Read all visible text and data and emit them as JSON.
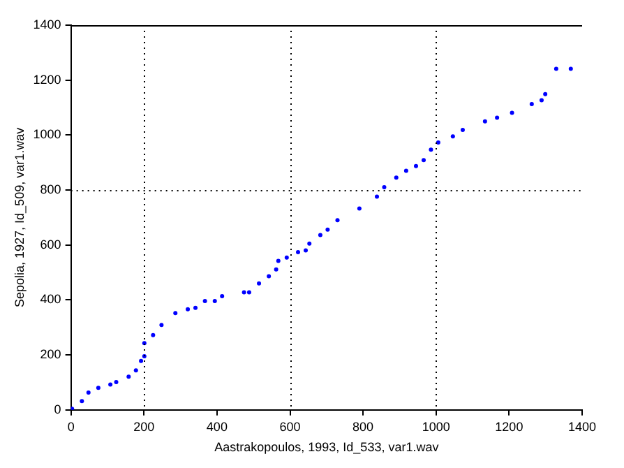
{
  "chart_data": {
    "type": "scatter",
    "xlabel": "Aastrakopoulos, 1993, Id_533, var1.wav",
    "ylabel": "Sepolia, 1927, Id_509, var1.wav",
    "xlim": [
      0,
      1400
    ],
    "ylim": [
      0,
      1400
    ],
    "xticks": [
      0,
      200,
      400,
      600,
      800,
      1000,
      1200,
      1400
    ],
    "yticks": [
      0,
      200,
      400,
      600,
      800,
      1000,
      1200,
      1400
    ],
    "grid": false,
    "legend": false,
    "marker": "circle",
    "ref_lines": [
      {
        "axis": "x",
        "value": 200,
        "line_style": "dotted",
        "color": "#000000"
      },
      {
        "axis": "x",
        "value": 600,
        "line_style": "dotted",
        "color": "#000000"
      },
      {
        "axis": "x",
        "value": 1000,
        "line_style": "dotted",
        "color": "#000000"
      },
      {
        "axis": "y",
        "value": 800,
        "line_style": "dotted",
        "color": "#000000"
      }
    ],
    "series": [
      {
        "color": "#0000ff",
        "x": [
          3,
          30,
          48,
          75,
          108,
          124,
          158,
          178,
          192,
          201,
          201,
          225,
          248,
          286,
          320,
          341,
          367,
          394,
          414,
          474,
          488,
          515,
          542,
          562,
          568,
          591,
          622,
          643,
          653,
          683,
          703,
          730,
          790,
          838,
          858,
          891,
          918,
          945,
          966,
          986,
          1006,
          1046,
          1073,
          1134,
          1167,
          1208,
          1262,
          1289,
          1299,
          1329,
          1369
        ],
        "values": [
          4,
          32,
          63,
          80,
          92,
          101,
          121,
          144,
          178,
          195,
          243,
          272,
          309,
          352,
          366,
          371,
          396,
          396,
          414,
          428,
          428,
          460,
          486,
          511,
          542,
          554,
          574,
          580,
          605,
          636,
          656,
          690,
          733,
          776,
          810,
          845,
          870,
          887,
          909,
          947,
          973,
          995,
          1019,
          1050,
          1063,
          1081,
          1113,
          1127,
          1149,
          1241,
          1241
        ]
      }
    ]
  }
}
